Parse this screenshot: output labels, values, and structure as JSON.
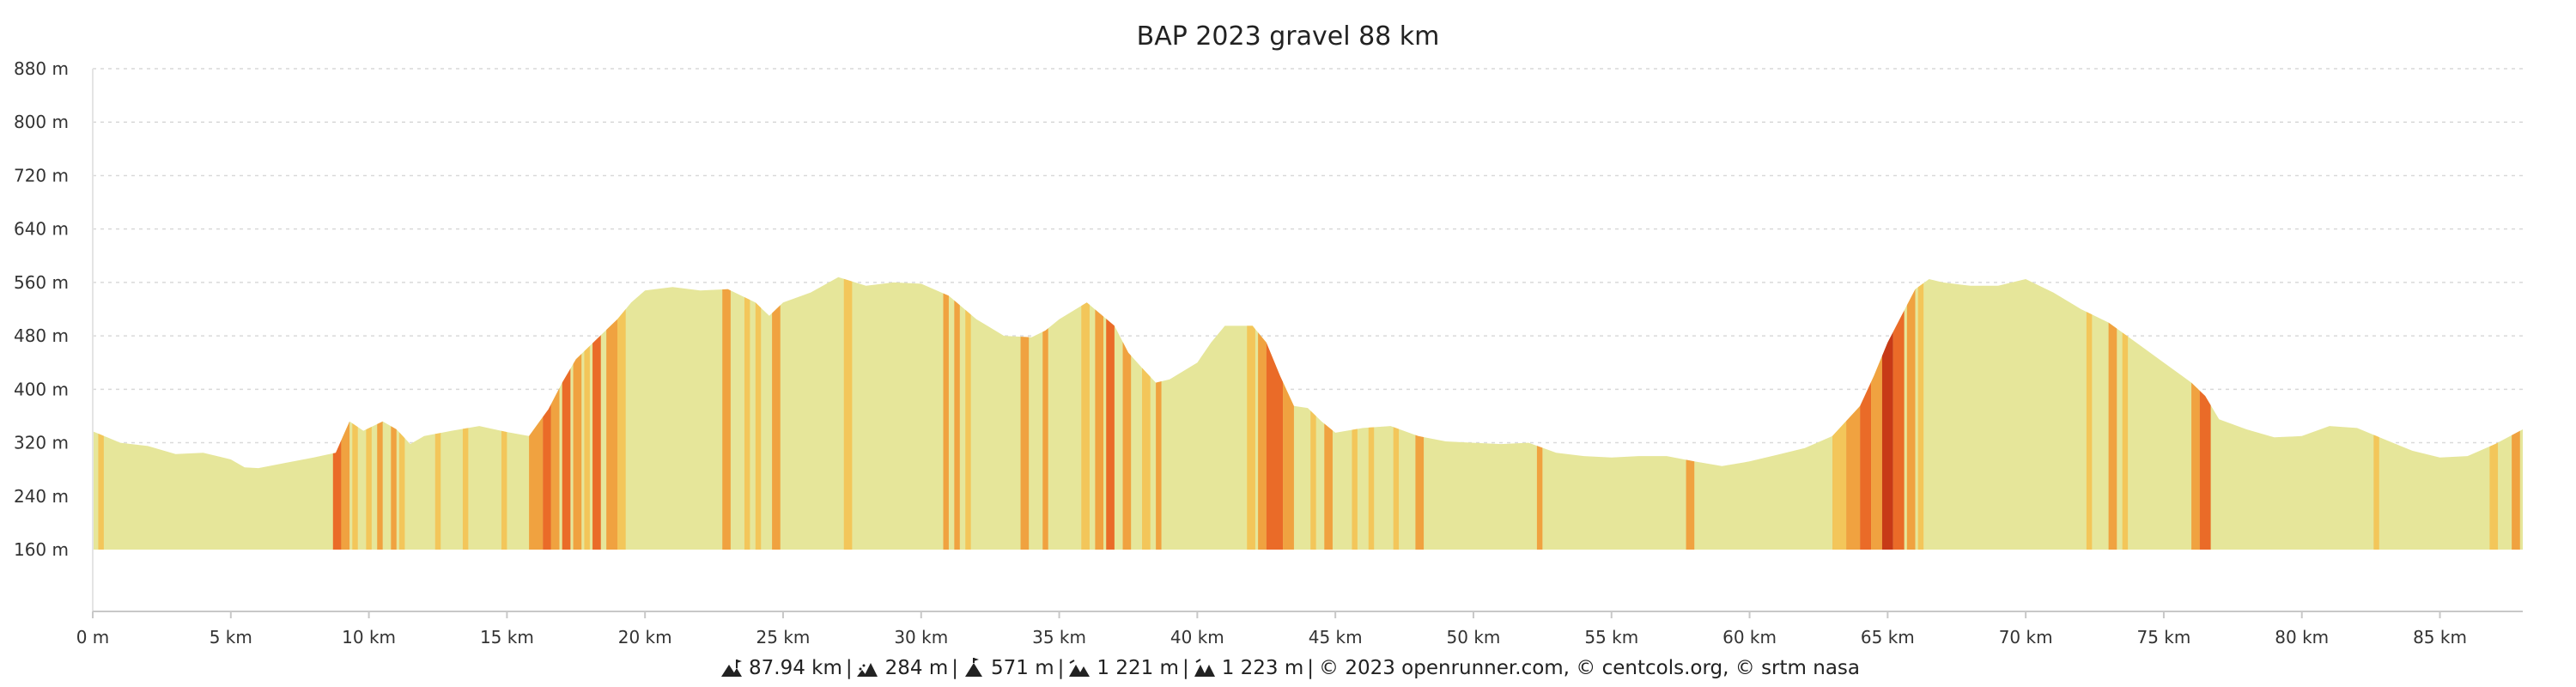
{
  "chart_data": {
    "type": "area",
    "title": "BAP 2023 gravel 88 km",
    "xlabel": "",
    "ylabel": "",
    "xlim": [
      0,
      88
    ],
    "ylim": [
      160,
      880
    ],
    "x_ticks": [
      "0 m",
      "5 km",
      "10 km",
      "15 km",
      "20 km",
      "25 km",
      "30 km",
      "35 km",
      "40 km",
      "45 km",
      "50 km",
      "55 km",
      "60 km",
      "65 km",
      "70 km",
      "75 km",
      "80 km",
      "85 km"
    ],
    "y_ticks": [
      "160 m",
      "240 m",
      "320 m",
      "400 m",
      "480 m",
      "560 m",
      "640 m",
      "720 m",
      "800 m",
      "880 m"
    ],
    "grid": "horizontal dashed",
    "fill_color": "#e6e69a",
    "slope_colors": [
      "#f3c65a",
      "#f0a240",
      "#ea6b28",
      "#c73a17"
    ],
    "profile": [
      [
        0,
        337
      ],
      [
        1,
        320
      ],
      [
        2,
        315
      ],
      [
        3,
        303
      ],
      [
        4,
        305
      ],
      [
        5,
        295
      ],
      [
        5.5,
        283
      ],
      [
        6,
        282
      ],
      [
        7,
        290
      ],
      [
        8,
        298
      ],
      [
        8.8,
        305
      ],
      [
        9.3,
        352
      ],
      [
        9.8,
        338
      ],
      [
        10.5,
        352
      ],
      [
        11,
        340
      ],
      [
        11.5,
        318
      ],
      [
        12,
        330
      ],
      [
        13,
        338
      ],
      [
        14,
        345
      ],
      [
        15,
        336
      ],
      [
        15.8,
        330
      ],
      [
        16.5,
        370
      ],
      [
        17,
        410
      ],
      [
        17.5,
        445
      ],
      [
        18,
        465
      ],
      [
        18.5,
        485
      ],
      [
        19,
        505
      ],
      [
        19.5,
        530
      ],
      [
        20,
        548
      ],
      [
        21,
        553
      ],
      [
        22,
        548
      ],
      [
        23,
        550
      ],
      [
        24,
        530
      ],
      [
        24.5,
        510
      ],
      [
        25,
        530
      ],
      [
        26,
        545
      ],
      [
        27,
        568
      ],
      [
        28,
        555
      ],
      [
        29,
        560
      ],
      [
        30,
        558
      ],
      [
        31,
        540
      ],
      [
        32,
        505
      ],
      [
        33,
        480
      ],
      [
        34,
        478
      ],
      [
        34.5,
        488
      ],
      [
        35,
        505
      ],
      [
        36,
        530
      ],
      [
        37,
        495
      ],
      [
        37.5,
        455
      ],
      [
        38,
        432
      ],
      [
        38.5,
        410
      ],
      [
        39,
        415
      ],
      [
        40,
        440
      ],
      [
        40.5,
        470
      ],
      [
        41,
        495
      ],
      [
        42,
        495
      ],
      [
        42.5,
        470
      ],
      [
        43,
        420
      ],
      [
        43.5,
        375
      ],
      [
        44,
        372
      ],
      [
        44.5,
        352
      ],
      [
        45,
        335
      ],
      [
        46,
        342
      ],
      [
        47,
        345
      ],
      [
        48,
        330
      ],
      [
        49,
        322
      ],
      [
        50,
        320
      ],
      [
        51,
        318
      ],
      [
        52,
        320
      ],
      [
        53,
        305
      ],
      [
        54,
        300
      ],
      [
        55,
        298
      ],
      [
        56,
        300
      ],
      [
        57,
        300
      ],
      [
        58,
        292
      ],
      [
        59,
        285
      ],
      [
        60,
        292
      ],
      [
        61,
        302
      ],
      [
        62,
        312
      ],
      [
        63,
        330
      ],
      [
        64,
        375
      ],
      [
        64.5,
        420
      ],
      [
        65,
        470
      ],
      [
        65.5,
        510
      ],
      [
        66,
        550
      ],
      [
        66.5,
        565
      ],
      [
        67,
        560
      ],
      [
        68,
        555
      ],
      [
        69,
        555
      ],
      [
        70,
        565
      ],
      [
        71,
        545
      ],
      [
        72,
        520
      ],
      [
        73,
        500
      ],
      [
        74,
        470
      ],
      [
        75,
        440
      ],
      [
        76,
        410
      ],
      [
        76.5,
        390
      ],
      [
        77,
        355
      ],
      [
        78,
        340
      ],
      [
        79,
        328
      ],
      [
        80,
        330
      ],
      [
        81,
        345
      ],
      [
        82,
        342
      ],
      [
        83,
        325
      ],
      [
        84,
        308
      ],
      [
        85,
        298
      ],
      [
        86,
        300
      ],
      [
        87,
        318
      ],
      [
        88,
        340
      ]
    ],
    "slope_bands": [
      [
        0.2,
        0.4,
        1
      ],
      [
        8.7,
        9.0,
        3
      ],
      [
        9.0,
        9.3,
        2
      ],
      [
        9.4,
        9.6,
        1
      ],
      [
        9.9,
        10.1,
        1
      ],
      [
        10.3,
        10.5,
        2
      ],
      [
        10.8,
        11.0,
        2
      ],
      [
        11.1,
        11.3,
        1
      ],
      [
        12.4,
        12.6,
        1
      ],
      [
        13.4,
        13.6,
        1
      ],
      [
        14.8,
        15.0,
        1
      ],
      [
        15.8,
        16.3,
        2
      ],
      [
        16.3,
        16.6,
        3
      ],
      [
        16.6,
        16.9,
        2
      ],
      [
        17.0,
        17.3,
        3
      ],
      [
        17.4,
        17.7,
        2
      ],
      [
        17.8,
        18.0,
        1
      ],
      [
        18.1,
        18.4,
        3
      ],
      [
        18.6,
        19.0,
        2
      ],
      [
        19.0,
        19.3,
        1
      ],
      [
        22.8,
        23.1,
        2
      ],
      [
        23.6,
        23.8,
        1
      ],
      [
        24.0,
        24.2,
        1
      ],
      [
        24.6,
        24.9,
        2
      ],
      [
        27.2,
        27.5,
        1
      ],
      [
        30.8,
        31.0,
        2
      ],
      [
        31.2,
        31.4,
        2
      ],
      [
        31.6,
        31.8,
        1
      ],
      [
        33.6,
        33.9,
        2
      ],
      [
        34.4,
        34.6,
        2
      ],
      [
        35.8,
        36.1,
        1
      ],
      [
        36.3,
        36.6,
        2
      ],
      [
        36.7,
        37.0,
        3
      ],
      [
        37.3,
        37.6,
        2
      ],
      [
        38.0,
        38.3,
        1
      ],
      [
        38.5,
        38.7,
        2
      ],
      [
        41.8,
        42.1,
        1
      ],
      [
        42.2,
        42.5,
        2
      ],
      [
        42.5,
        43.1,
        3
      ],
      [
        43.1,
        43.5,
        2
      ],
      [
        44.1,
        44.3,
        1
      ],
      [
        44.6,
        44.9,
        2
      ],
      [
        45.6,
        45.8,
        1
      ],
      [
        46.2,
        46.4,
        1
      ],
      [
        47.1,
        47.3,
        1
      ],
      [
        47.9,
        48.2,
        2
      ],
      [
        52.3,
        52.5,
        2
      ],
      [
        57.7,
        58.0,
        2
      ],
      [
        63.0,
        63.5,
        1
      ],
      [
        63.5,
        64.0,
        2
      ],
      [
        64.0,
        64.4,
        3
      ],
      [
        64.4,
        64.8,
        2
      ],
      [
        64.8,
        65.2,
        4
      ],
      [
        65.2,
        65.6,
        3
      ],
      [
        65.7,
        66.0,
        2
      ],
      [
        66.1,
        66.3,
        1
      ],
      [
        72.2,
        72.4,
        1
      ],
      [
        73.0,
        73.3,
        2
      ],
      [
        73.5,
        73.7,
        1
      ],
      [
        76.0,
        76.3,
        2
      ],
      [
        76.3,
        76.7,
        3
      ],
      [
        82.6,
        82.8,
        1
      ],
      [
        86.8,
        87.1,
        1
      ],
      [
        87.6,
        87.9,
        2
      ]
    ]
  },
  "footer": {
    "distance": "87.94 km",
    "ascent": "284 m",
    "max_alt": "571 m",
    "stat3": "1 221 m",
    "stat4": "1 223 m",
    "credits": "© 2023 openrunner.com, © centcols.org, © srtm nasa"
  },
  "icons": [
    "distance-icon",
    "ascent-icon",
    "max-altitude-icon",
    "descent-icon",
    "total-elevation-icon"
  ]
}
